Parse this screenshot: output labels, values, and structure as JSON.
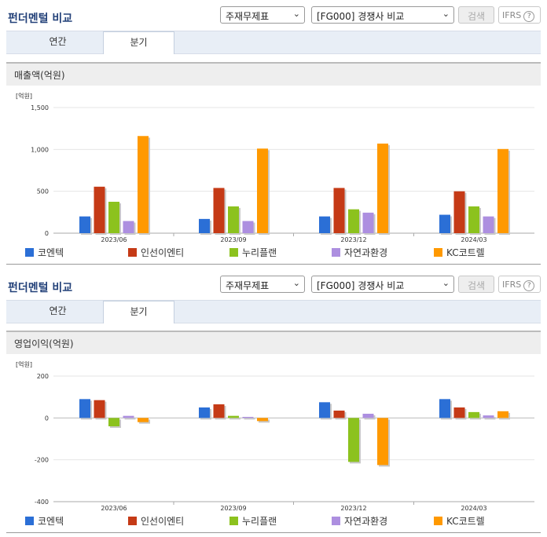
{
  "colors": {
    "company1": "#2b6fd6",
    "company2": "#c53a16",
    "company3": "#8cc21e",
    "company4": "#ad8fe0",
    "company5": "#ff9900"
  },
  "panels": [
    {
      "title": "펀더멘털 비교",
      "select1": "주재무제표",
      "select2": "[FG000] 경쟁사 비교",
      "search_label": "검색",
      "ifrs_label": "IFRS",
      "ifrs_help": "?",
      "tabs": [
        "연간",
        "분기"
      ],
      "active_tab": 1,
      "subtitle": "매출액(억원)",
      "unit": "[억원]",
      "chart_data": {
        "type": "bar",
        "categories": [
          "2023/06",
          "2023/09",
          "2023/12",
          "2024/03"
        ],
        "ylim": [
          0,
          1500
        ],
        "yticks": [
          0,
          500,
          1000,
          1500
        ],
        "ytick_labels": [
          "0",
          "500",
          "1,000",
          "1,500"
        ],
        "series": [
          {
            "name": "코엔텍",
            "values": [
              200,
              170,
              200,
              220
            ]
          },
          {
            "name": "인선이엔티",
            "values": [
              555,
              540,
              540,
              500
            ]
          },
          {
            "name": "누리플랜",
            "values": [
              375,
              320,
              285,
              320
            ]
          },
          {
            "name": "자연과환경",
            "values": [
              145,
              145,
              245,
              200
            ]
          },
          {
            "name": "KC코트렐",
            "values": [
              1160,
              1010,
              1070,
              1005
            ]
          }
        ]
      }
    },
    {
      "title": "펀더멘털 비교",
      "select1": "주재무제표",
      "select2": "[FG000] 경쟁사 비교",
      "search_label": "검색",
      "ifrs_label": "IFRS",
      "ifrs_help": "?",
      "tabs": [
        "연간",
        "분기"
      ],
      "active_tab": 1,
      "subtitle": "영업이익(억원)",
      "unit": "[억원]",
      "chart_data": {
        "type": "bar",
        "categories": [
          "2023/06",
          "2023/09",
          "2023/12",
          "2024/03"
        ],
        "ylim": [
          -400,
          200
        ],
        "yticks": [
          -400,
          -200,
          0,
          200
        ],
        "ytick_labels": [
          "-400",
          "-200",
          "0",
          "200"
        ],
        "series": [
          {
            "name": "코엔텍",
            "values": [
              90,
              50,
              75,
              90
            ]
          },
          {
            "name": "인선이엔티",
            "values": [
              85,
              65,
              35,
              50
            ]
          },
          {
            "name": "누리플랜",
            "values": [
              -40,
              10,
              -210,
              28
            ]
          },
          {
            "name": "자연과환경",
            "values": [
              10,
              5,
              20,
              12
            ]
          },
          {
            "name": "KC코트렐",
            "values": [
              -20,
              -15,
              -225,
              32
            ]
          }
        ]
      }
    }
  ]
}
